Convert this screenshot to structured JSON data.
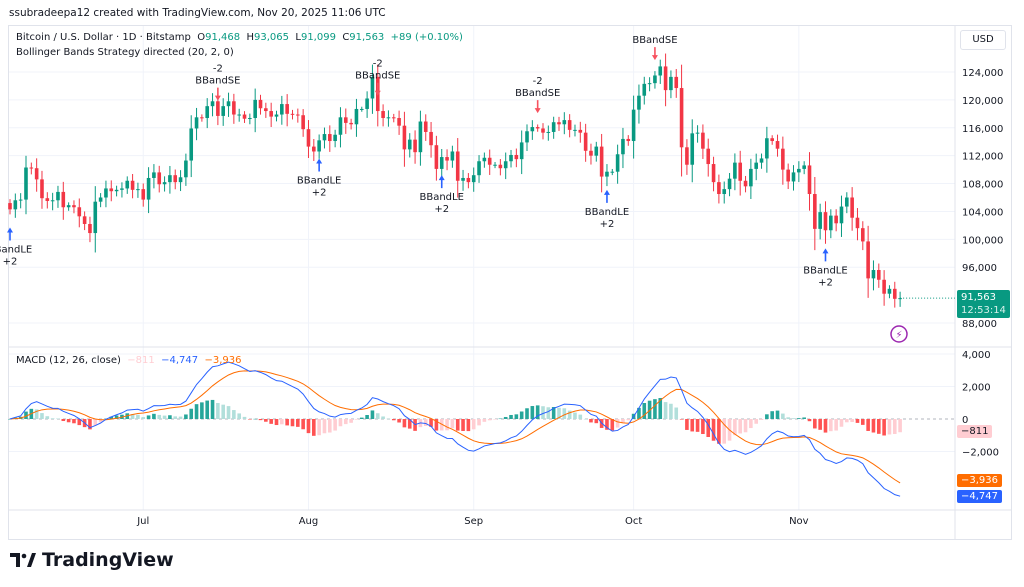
{
  "credit": "ssubradeepa12 created with TradingView.com, Nov 20, 2025 11:06 UTC",
  "symbol": {
    "name": "Bitcoin / U.S. Dollar · 1D · Bitstamp",
    "o_label": "O",
    "open": "91,468",
    "h_label": "H",
    "high": "93,065",
    "l_label": "L",
    "low": "91,099",
    "c_label": "C",
    "close": "91,563",
    "change": "+89 (+0.10%)"
  },
  "strategy_legend": "Bollinger Bands Strategy directed (20, 2, 0)",
  "currency": "USD",
  "last_price": {
    "value": "91,563",
    "countdown": "12:53:14"
  },
  "macd_legend": {
    "title": "MACD (12, 26, close)",
    "hist": "−811",
    "macd": "−4,747",
    "signal": "−3,936"
  },
  "macd_tags": {
    "hist": "−811",
    "signal": "−3,936",
    "macd": "−4,747"
  },
  "colors": {
    "up": "#089981",
    "down": "#f23645",
    "macd": "#2962ff",
    "signal": "#ff6d00",
    "hist_up": "#26a69a",
    "hist_up_light": "#b2dfdb",
    "hist_down": "#ff5252",
    "hist_down_light": "#ffcdd2",
    "long": "#2962ff",
    "short": "#f7525f"
  },
  "logo_text": "TradingView",
  "chart_data": {
    "type": "candlestick",
    "start_date": "2025-06-06",
    "close_thousands_usd": [
      104.3,
      105.6,
      105.7,
      110.3,
      110.2,
      108.6,
      105.9,
      105.5,
      105.6,
      106.8,
      104.6,
      104.9,
      104.6,
      103.3,
      102.2,
      100.9,
      105.4,
      106.0,
      107.3,
      106.9,
      107.1,
      107.3,
      108.4,
      107.1,
      107.2,
      105.7,
      108.8,
      109.6,
      107.9,
      108.2,
      109.2,
      108.2,
      108.9,
      111.3,
      115.9,
      117.5,
      117.4,
      119.1,
      119.8,
      117.7,
      119.1,
      119.8,
      117.9,
      117.9,
      117.3,
      117.4,
      120.0,
      118.8,
      118.4,
      117.6,
      117.9,
      119.4,
      118.0,
      117.9,
      117.8,
      115.8,
      113.3,
      112.6,
      114.2,
      115.1,
      114.1,
      115.0,
      117.5,
      116.7,
      116.5,
      118.7,
      118.7,
      120.2,
      123.3,
      118.4,
      117.4,
      117.5,
      117.4,
      116.3,
      112.9,
      114.3,
      112.5,
      116.9,
      115.4,
      113.5,
      110.1,
      111.8,
      111.3,
      112.6,
      108.4,
      108.8,
      108.2,
      109.2,
      111.2,
      111.7,
      110.7,
      110.7,
      110.2,
      111.2,
      112.1,
      111.5,
      113.9,
      115.5,
      116.1,
      115.9,
      115.3,
      115.4,
      116.8,
      116.5,
      117.1,
      115.7,
      115.7,
      115.3,
      112.7,
      112.0,
      113.3,
      109.0,
      109.7,
      109.7,
      112.2,
      114.4,
      114.1,
      118.6,
      120.6,
      122.3,
      122.4,
      123.5,
      124.8,
      121.4,
      123.3,
      121.7,
      113.2,
      110.7,
      115.2,
      115.3,
      113.0,
      110.8,
      108.2,
      106.5,
      107.2,
      108.7,
      111.0,
      108.4,
      107.6,
      110.1,
      111.0,
      111.6,
      114.5,
      114.1,
      113.0,
      110.0,
      108.3,
      109.6,
      110.1,
      110.6,
      106.5,
      101.5,
      103.9,
      101.3,
      103.4,
      102.3,
      104.7,
      106.0,
      103.1,
      101.6,
      99.7,
      94.4,
      95.6,
      94.2,
      92.2,
      92.9,
      91.468,
      91.563
    ],
    "price_axis_ticks": [
      "124,000",
      "120,000",
      "116,000",
      "112,000",
      "108,000",
      "104,000",
      "100,000",
      "96,000",
      "88,000"
    ],
    "price_axis_values": [
      124000,
      120000,
      116000,
      112000,
      108000,
      104000,
      100000,
      96000,
      88000
    ],
    "macd_axis_ticks": [
      "4,000",
      "2,000",
      "0",
      "−2,000"
    ],
    "macd_axis_values": [
      4000,
      2000,
      0,
      -2000
    ],
    "time_axis": [
      {
        "label": "Jul",
        "date": "2025-07-01"
      },
      {
        "label": "Aug",
        "date": "2025-08-01"
      },
      {
        "label": "Sep",
        "date": "2025-09-01"
      },
      {
        "label": "Oct",
        "date": "2025-10-01"
      },
      {
        "label": "Nov",
        "date": "2025-11-01"
      }
    ],
    "signals": [
      {
        "date": "2025-06-06",
        "type": "long",
        "label": "BBandLE",
        "qty": "+2"
      },
      {
        "date": "2025-07-15",
        "type": "short",
        "label": "BBandSE",
        "qty": "-2"
      },
      {
        "date": "2025-08-03",
        "type": "long",
        "label": "BBandLE",
        "qty": "+2"
      },
      {
        "date": "2025-08-14",
        "type": "short",
        "label": "BBandSE",
        "qty": "-2"
      },
      {
        "date": "2025-08-26",
        "type": "long",
        "label": "BBandLE",
        "qty": "+2"
      },
      {
        "date": "2025-09-13",
        "type": "short",
        "label": "BBandSE",
        "qty": "-2"
      },
      {
        "date": "2025-09-26",
        "type": "long",
        "label": "BBandLE",
        "qty": "+2"
      },
      {
        "date": "2025-10-05",
        "type": "short",
        "label": "BBandSE",
        "qty": ""
      },
      {
        "date": "2025-11-06",
        "type": "long",
        "label": "BBandLE",
        "qty": "+2"
      }
    ]
  }
}
